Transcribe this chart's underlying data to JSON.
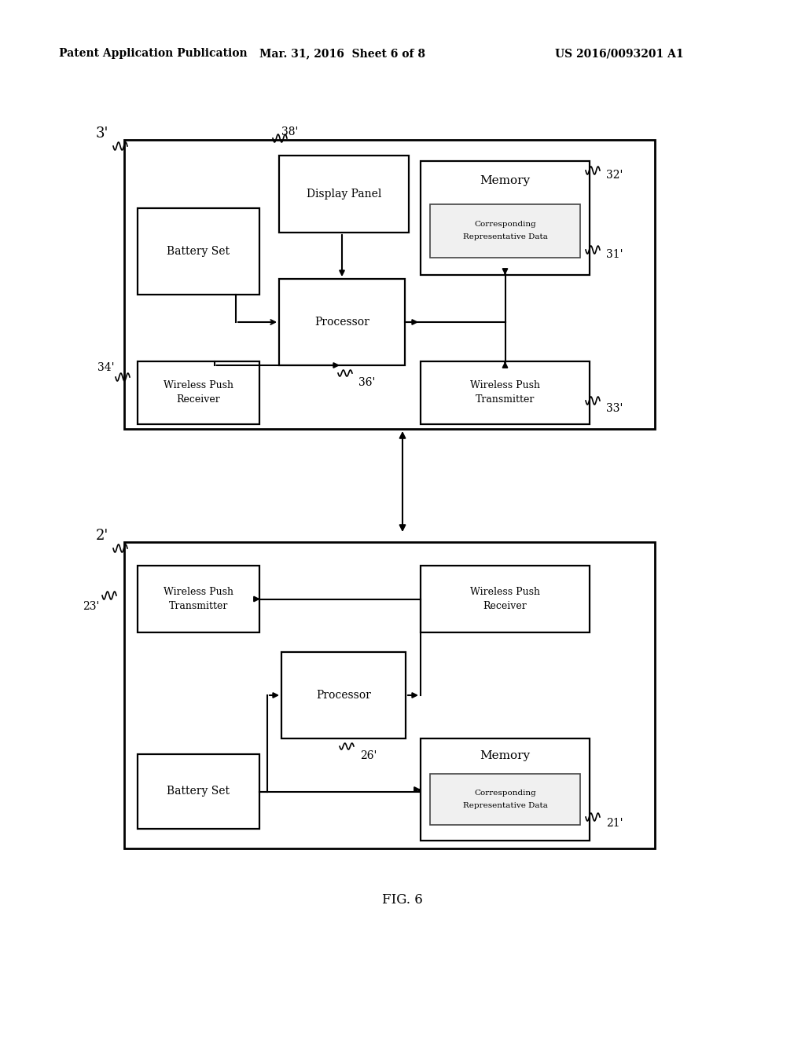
{
  "background_color": "#ffffff",
  "header_left": "Patent Application Publication",
  "header_mid": "Mar. 31, 2016  Sheet 6 of 8",
  "header_right": "US 2016/0093201 A1",
  "fig_label": "FIG. 6"
}
